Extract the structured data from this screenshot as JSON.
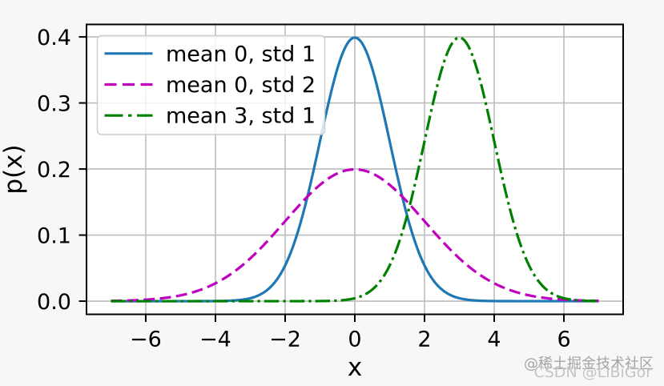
{
  "watermarks": {
    "juejin": "@稀土掘金技术社区",
    "csdn": "CSDN @LiBiGor"
  },
  "colors": {
    "figure_background": "#f7f7f7",
    "axes_background": "#ffffff",
    "grid": "#bdbdbd",
    "spine": "#000000",
    "tick": "#000000",
    "text": "#000000",
    "legend_border": "#cccccc",
    "legend_background": "rgba(255,255,255,0.8)"
  },
  "chart_data": {
    "type": "line",
    "title": "",
    "xlabel": "x",
    "ylabel": "p(x)",
    "xlim": [
      -7.7,
      7.7
    ],
    "ylim": [
      -0.01994712,
      0.41888939
    ],
    "grid": true,
    "legend_position": "upper left",
    "xticks": [
      -6,
      -4,
      -2,
      0,
      2,
      4,
      6
    ],
    "xtick_labels": [
      "−6",
      "−4",
      "−2",
      "0",
      "2",
      "4",
      "6"
    ],
    "yticks": [
      0.0,
      0.1,
      0.2,
      0.3,
      0.4
    ],
    "ytick_labels": [
      "0.0",
      "0.1",
      "0.2",
      "0.3",
      "0.4"
    ],
    "curve_type": "gaussian_pdf",
    "x_range": [
      -7,
      7
    ],
    "series": [
      {
        "name": "mean 0, std 1",
        "mean": 0,
        "std": 1,
        "color": "#1f77b4",
        "linestyle": "solid",
        "peak_x": 0,
        "peak_y": 0.3989
      },
      {
        "name": "mean 0, std 2",
        "mean": 0,
        "std": 2,
        "color": "#bf00bf",
        "linestyle": "dashed",
        "peak_x": 0,
        "peak_y": 0.1995
      },
      {
        "name": "mean 3, std 1",
        "mean": 3,
        "std": 1,
        "color": "#008000",
        "linestyle": "dashdot",
        "peak_x": 3,
        "peak_y": 0.3989
      }
    ]
  }
}
